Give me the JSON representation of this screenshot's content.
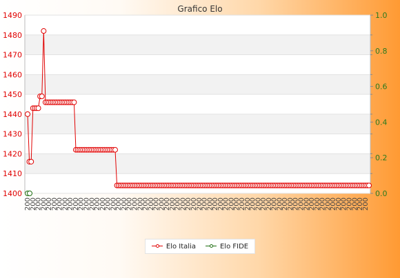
{
  "chart_data": {
    "type": "line",
    "title": "Grafico Elo",
    "y_left": {
      "min": 1400,
      "max": 1490,
      "ticks": [
        1400,
        1410,
        1420,
        1430,
        1440,
        1450,
        1460,
        1470,
        1480,
        1490
      ],
      "color": "#e00000"
    },
    "y_right": {
      "min": 0.0,
      "max": 1.0,
      "ticks": [
        "0.0",
        "0.2",
        "0.4",
        "0.6",
        "0.8",
        "1.0"
      ],
      "color": "#2a7a1e"
    },
    "x_label_prefix": "200",
    "grid": true,
    "legend_placement": "bottom",
    "series": [
      {
        "name": "Elo Italia",
        "color": "#e00000",
        "segments": [
          {
            "count": 1,
            "value": 1440
          },
          {
            "count": 2,
            "value": 1416
          },
          {
            "count": 4,
            "value": 1443
          },
          {
            "count": 2,
            "value": 1449
          },
          {
            "count": 1,
            "value": 1482
          },
          {
            "count": 17,
            "value": 1446
          },
          {
            "count": 23,
            "value": 1422
          },
          {
            "count": 142,
            "value": 1404
          }
        ]
      },
      {
        "name": "Elo FIDE",
        "color": "#1e6e10",
        "segments": [
          {
            "count": 2,
            "value": 0.0
          }
        ]
      }
    ]
  }
}
